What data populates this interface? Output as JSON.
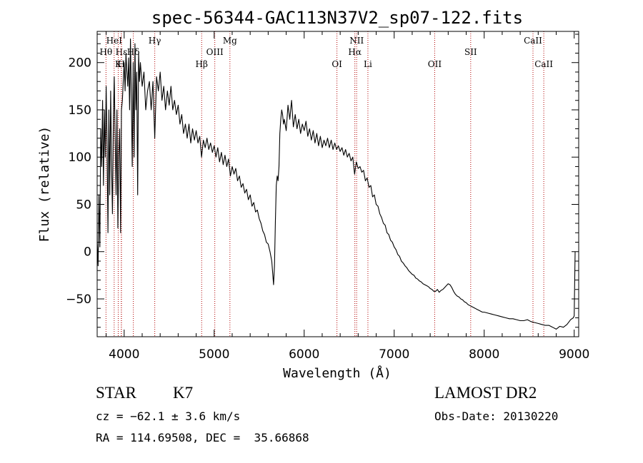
{
  "chart_data": {
    "type": "line",
    "title": "spec-56344-GAC113N37V2_sp07-122.fits",
    "xlabel": "Wavelength (Å)",
    "ylabel": "Flux (relative)",
    "xlim": [
      3700,
      9050
    ],
    "ylim": [
      -90,
      233
    ],
    "xticks": [
      4000,
      5000,
      6000,
      7000,
      8000,
      9000
    ],
    "yticks": [
      -50,
      0,
      50,
      100,
      150,
      200
    ],
    "grid": false,
    "series": [
      {
        "points": [
          [
            3700,
            10
          ],
          [
            3710,
            -15
          ],
          [
            3720,
            60
          ],
          [
            3730,
            5
          ],
          [
            3740,
            130
          ],
          [
            3750,
            90
          ],
          [
            3760,
            160
          ],
          [
            3770,
            70
          ],
          [
            3780,
            150
          ],
          [
            3790,
            100
          ],
          [
            3800,
            175
          ],
          [
            3810,
            110
          ],
          [
            3820,
            20
          ],
          [
            3830,
            150
          ],
          [
            3840,
            60
          ],
          [
            3850,
            170
          ],
          [
            3860,
            90
          ],
          [
            3870,
            40
          ],
          [
            3880,
            140
          ],
          [
            3890,
            185
          ],
          [
            3900,
            120
          ],
          [
            3910,
            60
          ],
          [
            3920,
            150
          ],
          [
            3930,
            25
          ],
          [
            3940,
            100
          ],
          [
            3950,
            130
          ],
          [
            3960,
            20
          ],
          [
            3970,
            150
          ],
          [
            3980,
            160
          ],
          [
            3990,
            180
          ],
          [
            4000,
            200
          ],
          [
            4010,
            170
          ],
          [
            4020,
            210
          ],
          [
            4030,
            190
          ],
          [
            4040,
            175
          ],
          [
            4050,
            205
          ],
          [
            4060,
            150
          ],
          [
            4070,
            225
          ],
          [
            4080,
            160
          ],
          [
            4090,
            90
          ],
          [
            4100,
            200
          ],
          [
            4110,
            100
          ],
          [
            4120,
            220
          ],
          [
            4130,
            150
          ],
          [
            4140,
            190
          ],
          [
            4150,
            60
          ],
          [
            4160,
            210
          ],
          [
            4170,
            180
          ],
          [
            4180,
            200
          ],
          [
            4200,
            175
          ],
          [
            4220,
            190
          ],
          [
            4240,
            150
          ],
          [
            4260,
            170
          ],
          [
            4280,
            180
          ],
          [
            4300,
            150
          ],
          [
            4320,
            180
          ],
          [
            4340,
            120
          ],
          [
            4360,
            185
          ],
          [
            4380,
            170
          ],
          [
            4400,
            190
          ],
          [
            4420,
            160
          ],
          [
            4440,
            175
          ],
          [
            4460,
            150
          ],
          [
            4480,
            170
          ],
          [
            4500,
            155
          ],
          [
            4520,
            175
          ],
          [
            4540,
            150
          ],
          [
            4560,
            160
          ],
          [
            4580,
            145
          ],
          [
            4600,
            155
          ],
          [
            4620,
            135
          ],
          [
            4640,
            145
          ],
          [
            4660,
            125
          ],
          [
            4680,
            135
          ],
          [
            4700,
            120
          ],
          [
            4720,
            135
          ],
          [
            4740,
            115
          ],
          [
            4760,
            130
          ],
          [
            4780,
            118
          ],
          [
            4800,
            128
          ],
          [
            4820,
            115
          ],
          [
            4840,
            122
          ],
          [
            4860,
            100
          ],
          [
            4880,
            118
          ],
          [
            4900,
            110
          ],
          [
            4920,
            120
          ],
          [
            4940,
            108
          ],
          [
            4960,
            115
          ],
          [
            4980,
            105
          ],
          [
            5000,
            112
          ],
          [
            5020,
            100
          ],
          [
            5040,
            110
          ],
          [
            5060,
            95
          ],
          [
            5080,
            105
          ],
          [
            5100,
            92
          ],
          [
            5120,
            102
          ],
          [
            5140,
            90
          ],
          [
            5160,
            98
          ],
          [
            5180,
            80
          ],
          [
            5200,
            90
          ],
          [
            5220,
            82
          ],
          [
            5240,
            88
          ],
          [
            5260,
            75
          ],
          [
            5280,
            80
          ],
          [
            5300,
            68
          ],
          [
            5320,
            72
          ],
          [
            5340,
            62
          ],
          [
            5360,
            66
          ],
          [
            5380,
            55
          ],
          [
            5400,
            60
          ],
          [
            5420,
            48
          ],
          [
            5440,
            52
          ],
          [
            5460,
            42
          ],
          [
            5480,
            44
          ],
          [
            5500,
            35
          ],
          [
            5520,
            30
          ],
          [
            5540,
            22
          ],
          [
            5560,
            18
          ],
          [
            5580,
            10
          ],
          [
            5600,
            8
          ],
          [
            5620,
            0
          ],
          [
            5640,
            -10
          ],
          [
            5660,
            -35
          ],
          [
            5670,
            -15
          ],
          [
            5680,
            30
          ],
          [
            5690,
            70
          ],
          [
            5700,
            80
          ],
          [
            5710,
            75
          ],
          [
            5720,
            90
          ],
          [
            5730,
            125
          ],
          [
            5740,
            140
          ],
          [
            5750,
            150
          ],
          [
            5760,
            145
          ],
          [
            5770,
            135
          ],
          [
            5780,
            140
          ],
          [
            5800,
            128
          ],
          [
            5820,
            155
          ],
          [
            5840,
            140
          ],
          [
            5860,
            160
          ],
          [
            5880,
            132
          ],
          [
            5900,
            145
          ],
          [
            5920,
            130
          ],
          [
            5940,
            140
          ],
          [
            5960,
            125
          ],
          [
            5980,
            135
          ],
          [
            6000,
            128
          ],
          [
            6020,
            138
          ],
          [
            6040,
            122
          ],
          [
            6060,
            130
          ],
          [
            6080,
            118
          ],
          [
            6100,
            128
          ],
          [
            6120,
            115
          ],
          [
            6140,
            125
          ],
          [
            6160,
            112
          ],
          [
            6180,
            122
          ],
          [
            6200,
            110
          ],
          [
            6220,
            118
          ],
          [
            6240,
            112
          ],
          [
            6260,
            120
          ],
          [
            6280,
            110
          ],
          [
            6300,
            118
          ],
          [
            6320,
            108
          ],
          [
            6340,
            115
          ],
          [
            6360,
            108
          ],
          [
            6380,
            112
          ],
          [
            6400,
            106
          ],
          [
            6420,
            110
          ],
          [
            6440,
            102
          ],
          [
            6460,
            108
          ],
          [
            6480,
            100
          ],
          [
            6500,
            104
          ],
          [
            6520,
            96
          ],
          [
            6540,
            100
          ],
          [
            6560,
            82
          ],
          [
            6580,
            95
          ],
          [
            6600,
            88
          ],
          [
            6620,
            90
          ],
          [
            6640,
            84
          ],
          [
            6660,
            86
          ],
          [
            6680,
            75
          ],
          [
            6700,
            78
          ],
          [
            6720,
            68
          ],
          [
            6740,
            70
          ],
          [
            6760,
            58
          ],
          [
            6780,
            60
          ],
          [
            6800,
            50
          ],
          [
            6820,
            48
          ],
          [
            6840,
            40
          ],
          [
            6860,
            36
          ],
          [
            6880,
            30
          ],
          [
            6900,
            28
          ],
          [
            6920,
            20
          ],
          [
            6940,
            18
          ],
          [
            6960,
            12
          ],
          [
            6980,
            10
          ],
          [
            7000,
            5
          ],
          [
            7020,
            2
          ],
          [
            7040,
            -3
          ],
          [
            7060,
            -5
          ],
          [
            7080,
            -10
          ],
          [
            7100,
            -12
          ],
          [
            7120,
            -15
          ],
          [
            7140,
            -17
          ],
          [
            7160,
            -20
          ],
          [
            7180,
            -22
          ],
          [
            7200,
            -24
          ],
          [
            7220,
            -25
          ],
          [
            7240,
            -28
          ],
          [
            7260,
            -29
          ],
          [
            7280,
            -31
          ],
          [
            7300,
            -32
          ],
          [
            7320,
            -34
          ],
          [
            7340,
            -35
          ],
          [
            7360,
            -36
          ],
          [
            7380,
            -37
          ],
          [
            7400,
            -39
          ],
          [
            7420,
            -40
          ],
          [
            7440,
            -42
          ],
          [
            7460,
            -42
          ],
          [
            7480,
            -40
          ],
          [
            7500,
            -43
          ],
          [
            7520,
            -41
          ],
          [
            7540,
            -40
          ],
          [
            7560,
            -38
          ],
          [
            7580,
            -36
          ],
          [
            7600,
            -34
          ],
          [
            7620,
            -35
          ],
          [
            7640,
            -38
          ],
          [
            7660,
            -42
          ],
          [
            7680,
            -45
          ],
          [
            7700,
            -47
          ],
          [
            7720,
            -48
          ],
          [
            7740,
            -50
          ],
          [
            7760,
            -51
          ],
          [
            7780,
            -53
          ],
          [
            7800,
            -54
          ],
          [
            7820,
            -56
          ],
          [
            7840,
            -57
          ],
          [
            7860,
            -58
          ],
          [
            7880,
            -59
          ],
          [
            7900,
            -60
          ],
          [
            7920,
            -61
          ],
          [
            7940,
            -62
          ],
          [
            7960,
            -63
          ],
          [
            7980,
            -64
          ],
          [
            8000,
            -64
          ],
          [
            8040,
            -65
          ],
          [
            8080,
            -66
          ],
          [
            8120,
            -67
          ],
          [
            8160,
            -68
          ],
          [
            8200,
            -69
          ],
          [
            8240,
            -70
          ],
          [
            8280,
            -71
          ],
          [
            8320,
            -71
          ],
          [
            8360,
            -72
          ],
          [
            8400,
            -73
          ],
          [
            8440,
            -73
          ],
          [
            8480,
            -72
          ],
          [
            8520,
            -74
          ],
          [
            8560,
            -75
          ],
          [
            8600,
            -76
          ],
          [
            8640,
            -77
          ],
          [
            8680,
            -78
          ],
          [
            8720,
            -78
          ],
          [
            8760,
            -80
          ],
          [
            8800,
            -82
          ],
          [
            8840,
            -79
          ],
          [
            8880,
            -80
          ],
          [
            8920,
            -77
          ],
          [
            8960,
            -72
          ],
          [
            8990,
            -70
          ],
          [
            9000,
            -68
          ],
          [
            9010,
            0
          ]
        ]
      }
    ],
    "lines": [
      {
        "label": "Hθ",
        "wave": 3798,
        "row": 1
      },
      {
        "label": "HeI",
        "wave": 3889,
        "row": 0
      },
      {
        "label": "Hε",
        "wave": 3970,
        "row": 1
      },
      {
        "label": "K",
        "wave": 3934,
        "row": 2
      },
      {
        "label": "Hδ",
        "wave": 4102,
        "row": 1
      },
      {
        "label": "H",
        "wave": 3968,
        "row": 2
      },
      {
        "label": "Hγ",
        "wave": 4340,
        "row": 0
      },
      {
        "label": "Hβ",
        "wave": 4861,
        "row": 2
      },
      {
        "label": "OIII",
        "wave": 5007,
        "row": 1
      },
      {
        "label": "Mg",
        "wave": 5175,
        "row": 0
      },
      {
        "label": "OI",
        "wave": 6364,
        "row": 2
      },
      {
        "label": "NII",
        "wave": 6583,
        "row": 0
      },
      {
        "label": "Hα",
        "wave": 6563,
        "row": 1
      },
      {
        "label": "Li",
        "wave": 6708,
        "row": 2
      },
      {
        "label": "OII",
        "wave": 7450,
        "row": 2
      },
      {
        "label": "SII",
        "wave": 7850,
        "row": 1
      },
      {
        "label": "CaII",
        "wave": 8542,
        "row": 0
      },
      {
        "label": "CaII",
        "wave": 8662,
        "row": 2
      }
    ]
  },
  "info": {
    "object_class": "STAR",
    "subclass": "K7",
    "survey": "LAMOST DR2",
    "velocity": "cz = −62.1 ± 3.6 km/s",
    "obs_date": "Obs-Date: 20130220",
    "coords": "RA = 114.69508, DEC =  35.66868"
  }
}
